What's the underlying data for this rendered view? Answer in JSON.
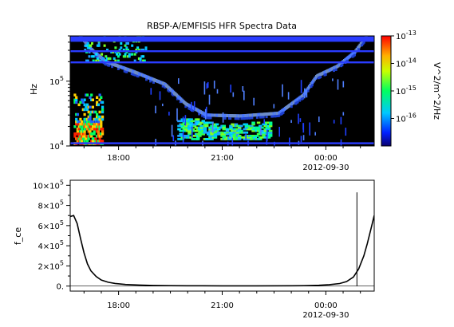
{
  "title": "RBSP-A/EMFISIS  HFR Spectra Data",
  "colors": {
    "background": "#000000",
    "frame": "#000000",
    "line_bands": "#2a3cff",
    "trace": "#000000"
  },
  "chart_data": [
    {
      "type": "heatmap",
      "title": "RBSP-A/EMFISIS  HFR Spectra Data",
      "ylabel": "Hz",
      "yscale": "log",
      "ylim": [
        10000,
        500000
      ],
      "ytick_labels": [
        {
          "base": "10",
          "exp": "4",
          "value": 10000
        },
        {
          "base": "10",
          "exp": "5",
          "value": 100000
        }
      ],
      "xtick_labels": [
        {
          "label": "18:00",
          "hours": 18
        },
        {
          "label": "21:00",
          "hours": 21
        },
        {
          "label": "00:00",
          "hours": 24,
          "date": "2012-09-30"
        }
      ],
      "xlim_hours": [
        16.6,
        25.4
      ],
      "colorbar": {
        "label": "V^2/m^2/Hz",
        "scale": "log",
        "range": [
          1e-17,
          1e-13
        ],
        "tick_labels": [
          {
            "base": "10",
            "exp": "-13",
            "value": 1e-13
          },
          {
            "base": "10",
            "exp": "-14",
            "value": 1e-14
          },
          {
            "base": "10",
            "exp": "-15",
            "value": 1e-15
          },
          {
            "base": "10",
            "exp": "-16",
            "value": 1e-16
          }
        ]
      },
      "horizontal_lines_hz": [
        420000,
        290000,
        195000,
        11000
      ],
      "upper_hybrid_band": [
        {
          "t": 16.85,
          "f": 500000
        },
        {
          "t": 17.2,
          "f": 300000
        },
        {
          "t": 17.6,
          "f": 200000
        },
        {
          "t": 18.4,
          "f": 140000
        },
        {
          "t": 19.3,
          "f": 90000
        },
        {
          "t": 19.9,
          "f": 45000
        },
        {
          "t": 20.5,
          "f": 30000
        },
        {
          "t": 21.5,
          "f": 29000
        },
        {
          "t": 22.6,
          "f": 32000
        },
        {
          "t": 23.3,
          "f": 60000
        },
        {
          "t": 23.7,
          "f": 120000
        },
        {
          "t": 24.3,
          "f": 170000
        },
        {
          "t": 24.8,
          "f": 280000
        },
        {
          "t": 25.15,
          "f": 500000
        }
      ]
    },
    {
      "type": "line",
      "ylabel": "f_ce",
      "ylim": [
        -50000,
        1050000
      ],
      "ytick_labels": [
        {
          "mant": "0.",
          "exp": "",
          "value": 0
        },
        {
          "mant": "2×10",
          "exp": "5",
          "value": 200000
        },
        {
          "mant": "4×10",
          "exp": "5",
          "value": 400000
        },
        {
          "mant": "6×10",
          "exp": "5",
          "value": 600000
        },
        {
          "mant": "8×10",
          "exp": "5",
          "value": 800000
        },
        {
          "mant": "10×10",
          "exp": "5",
          "value": 1000000
        }
      ],
      "xtick_labels": [
        {
          "label": "18:00",
          "hours": 18
        },
        {
          "label": "21:00",
          "hours": 21
        },
        {
          "label": "00:00",
          "hours": 24,
          "date": "2012-09-30"
        }
      ],
      "xlim_hours": [
        16.6,
        25.4
      ],
      "series": [
        {
          "x": [
            16.6,
            16.7,
            16.8,
            16.9,
            17.0,
            17.1,
            17.2,
            17.35,
            17.5,
            17.7,
            17.9,
            18.2,
            18.6,
            19.0,
            19.5,
            20.0,
            21.0,
            22.0,
            23.0,
            23.5,
            23.8,
            24.1,
            24.4,
            24.6,
            24.8,
            24.95,
            25.1,
            25.2,
            25.3,
            25.4
          ],
          "y": [
            690000,
            700000,
            620000,
            470000,
            330000,
            220000,
            150000,
            95000,
            60000,
            38000,
            26000,
            16000,
            10000,
            6000,
            4000,
            3000,
            2000,
            2000,
            3000,
            5000,
            8000,
            14000,
            25000,
            45000,
            90000,
            170000,
            300000,
            420000,
            560000,
            700000
          ]
        }
      ],
      "spike": {
        "x": 24.9,
        "y": 930000
      }
    }
  ]
}
